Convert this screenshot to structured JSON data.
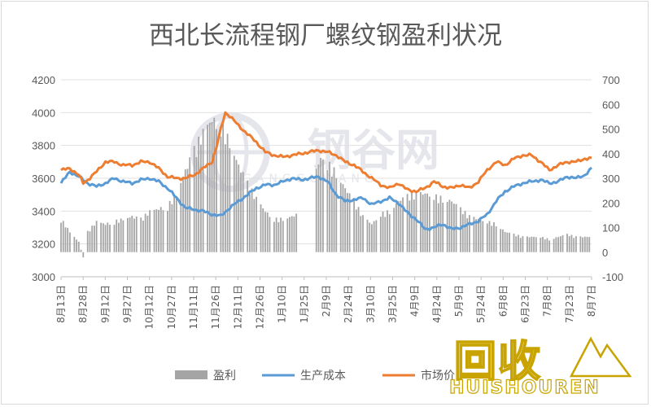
{
  "chart_data": {
    "type": "bar+line",
    "title": "西北长流程钢厂螺纹钢盈利状况",
    "y_left": {
      "min": 3000,
      "max": 4200,
      "ticks": [
        3000,
        3200,
        3400,
        3600,
        3800,
        4000,
        4200
      ]
    },
    "y_right": {
      "min": -100,
      "max": 700,
      "ticks": [
        -100,
        0,
        100,
        200,
        300,
        400,
        500,
        600,
        700
      ]
    },
    "x_labels": [
      "8月13日",
      "8月28日",
      "9月12日",
      "9月27日",
      "10月12日",
      "10月27日",
      "11月11日",
      "11月26日",
      "12月11日",
      "12月26日",
      "1月10日",
      "1月25日",
      "2月9日",
      "2月24日",
      "3月10日",
      "3月25日",
      "4月9日",
      "4月24日",
      "5月9日",
      "5月24日",
      "6月8日",
      "6月23日",
      "7月8日",
      "7月23日",
      "8月7日"
    ],
    "x_count": 240,
    "legend": [
      "盈利",
      "生产成本",
      "市场价"
    ],
    "series": [
      {
        "name": "盈利",
        "type": "bar",
        "axis": "right",
        "color": "#a5a5a5",
        "gaps": [
          [
            108,
            114
          ]
        ],
        "keys": [
          [
            0,
            130
          ],
          [
            4,
            80
          ],
          [
            8,
            40
          ],
          [
            10,
            -20
          ],
          [
            12,
            80
          ],
          [
            16,
            120
          ],
          [
            20,
            110
          ],
          [
            24,
            120
          ],
          [
            28,
            130
          ],
          [
            32,
            140
          ],
          [
            36,
            130
          ],
          [
            40,
            160
          ],
          [
            44,
            170
          ],
          [
            48,
            180
          ],
          [
            52,
            230
          ],
          [
            56,
            320
          ],
          [
            60,
            400
          ],
          [
            64,
            470
          ],
          [
            68,
            520
          ],
          [
            72,
            500
          ],
          [
            76,
            430
          ],
          [
            80,
            340
          ],
          [
            84,
            270
          ],
          [
            88,
            210
          ],
          [
            92,
            160
          ],
          [
            96,
            130
          ],
          [
            100,
            130
          ],
          [
            104,
            140
          ],
          [
            107,
            150
          ],
          [
            115,
            330
          ],
          [
            118,
            380
          ],
          [
            120,
            350
          ],
          [
            124,
            310
          ],
          [
            128,
            250
          ],
          [
            132,
            200
          ],
          [
            136,
            140
          ],
          [
            140,
            110
          ],
          [
            144,
            150
          ],
          [
            148,
            160
          ],
          [
            152,
            200
          ],
          [
            156,
            220
          ],
          [
            160,
            230
          ],
          [
            164,
            230
          ],
          [
            168,
            220
          ],
          [
            172,
            210
          ],
          [
            176,
            200
          ],
          [
            180,
            170
          ],
          [
            184,
            140
          ],
          [
            188,
            130
          ],
          [
            192,
            120
          ],
          [
            196,
            110
          ],
          [
            200,
            80
          ],
          [
            204,
            70
          ],
          [
            208,
            60
          ],
          [
            212,
            60
          ],
          [
            216,
            60
          ],
          [
            220,
            50
          ],
          [
            224,
            60
          ],
          [
            228,
            70
          ],
          [
            232,
            60
          ],
          [
            236,
            60
          ],
          [
            239,
            60
          ]
        ]
      },
      {
        "name": "生产成本",
        "type": "line",
        "axis": "left",
        "color": "#5b9bd5",
        "keys": [
          [
            0,
            3570
          ],
          [
            4,
            3640
          ],
          [
            8,
            3610
          ],
          [
            12,
            3570
          ],
          [
            16,
            3550
          ],
          [
            20,
            3570
          ],
          [
            24,
            3600
          ],
          [
            28,
            3580
          ],
          [
            32,
            3570
          ],
          [
            36,
            3590
          ],
          [
            40,
            3600
          ],
          [
            44,
            3580
          ],
          [
            48,
            3540
          ],
          [
            52,
            3480
          ],
          [
            56,
            3420
          ],
          [
            60,
            3410
          ],
          [
            64,
            3400
          ],
          [
            68,
            3380
          ],
          [
            72,
            3370
          ],
          [
            76,
            3420
          ],
          [
            80,
            3460
          ],
          [
            84,
            3500
          ],
          [
            88,
            3540
          ],
          [
            92,
            3560
          ],
          [
            96,
            3560
          ],
          [
            100,
            3580
          ],
          [
            104,
            3600
          ],
          [
            108,
            3590
          ],
          [
            112,
            3600
          ],
          [
            116,
            3610
          ],
          [
            120,
            3580
          ],
          [
            124,
            3500
          ],
          [
            128,
            3460
          ],
          [
            132,
            3470
          ],
          [
            136,
            3480
          ],
          [
            140,
            3440
          ],
          [
            144,
            3460
          ],
          [
            148,
            3480
          ],
          [
            152,
            3450
          ],
          [
            156,
            3390
          ],
          [
            160,
            3350
          ],
          [
            164,
            3290
          ],
          [
            168,
            3300
          ],
          [
            172,
            3320
          ],
          [
            176,
            3290
          ],
          [
            180,
            3300
          ],
          [
            184,
            3320
          ],
          [
            188,
            3340
          ],
          [
            192,
            3380
          ],
          [
            196,
            3460
          ],
          [
            200,
            3520
          ],
          [
            204,
            3550
          ],
          [
            208,
            3570
          ],
          [
            212,
            3580
          ],
          [
            216,
            3590
          ],
          [
            220,
            3570
          ],
          [
            224,
            3580
          ],
          [
            228,
            3610
          ],
          [
            232,
            3600
          ],
          [
            236,
            3620
          ],
          [
            239,
            3660
          ]
        ]
      },
      {
        "name": "市场价",
        "type": "line",
        "axis": "left",
        "color": "#ed7d31",
        "keys": [
          [
            0,
            3650
          ],
          [
            4,
            3660
          ],
          [
            8,
            3620
          ],
          [
            10,
            3570
          ],
          [
            12,
            3590
          ],
          [
            16,
            3640
          ],
          [
            20,
            3700
          ],
          [
            24,
            3700
          ],
          [
            28,
            3680
          ],
          [
            32,
            3680
          ],
          [
            36,
            3700
          ],
          [
            40,
            3700
          ],
          [
            44,
            3660
          ],
          [
            48,
            3610
          ],
          [
            52,
            3600
          ],
          [
            56,
            3600
          ],
          [
            60,
            3620
          ],
          [
            64,
            3660
          ],
          [
            68,
            3700
          ],
          [
            70,
            3790
          ],
          [
            72,
            3900
          ],
          [
            74,
            4000
          ],
          [
            76,
            3980
          ],
          [
            80,
            3920
          ],
          [
            84,
            3870
          ],
          [
            88,
            3820
          ],
          [
            92,
            3760
          ],
          [
            96,
            3740
          ],
          [
            100,
            3730
          ],
          [
            104,
            3740
          ],
          [
            108,
            3750
          ],
          [
            112,
            3760
          ],
          [
            116,
            3770
          ],
          [
            120,
            3760
          ],
          [
            124,
            3740
          ],
          [
            128,
            3700
          ],
          [
            132,
            3680
          ],
          [
            136,
            3640
          ],
          [
            140,
            3600
          ],
          [
            144,
            3560
          ],
          [
            148,
            3540
          ],
          [
            152,
            3570
          ],
          [
            156,
            3530
          ],
          [
            160,
            3520
          ],
          [
            164,
            3540
          ],
          [
            168,
            3580
          ],
          [
            172,
            3550
          ],
          [
            176,
            3540
          ],
          [
            180,
            3560
          ],
          [
            184,
            3540
          ],
          [
            188,
            3580
          ],
          [
            192,
            3650
          ],
          [
            196,
            3700
          ],
          [
            200,
            3680
          ],
          [
            204,
            3720
          ],
          [
            208,
            3740
          ],
          [
            212,
            3740
          ],
          [
            216,
            3700
          ],
          [
            220,
            3650
          ],
          [
            224,
            3680
          ],
          [
            228,
            3700
          ],
          [
            232,
            3700
          ],
          [
            236,
            3720
          ],
          [
            239,
            3720
          ]
        ]
      }
    ]
  },
  "watermark": {
    "logo_text": "钢谷网",
    "logo_sub": "GANGGUWANG",
    "brand_text": "回收",
    "brand_sub": "HUISHOUREN"
  }
}
